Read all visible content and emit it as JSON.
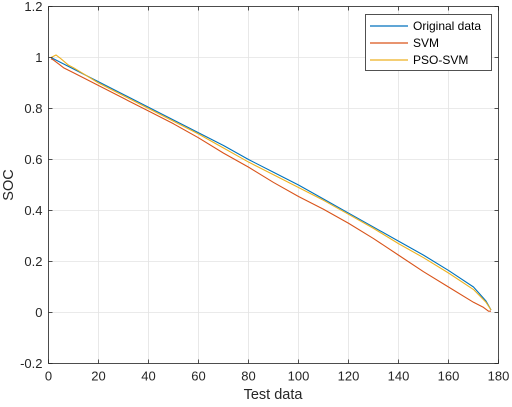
{
  "chart_data": {
    "type": "line",
    "xlabel": "Test data",
    "ylabel": "SOC",
    "xlim": [
      0,
      180
    ],
    "ylim": [
      -0.2,
      1.2
    ],
    "xticks": [
      0,
      20,
      40,
      60,
      80,
      100,
      120,
      140,
      160,
      180
    ],
    "yticks": [
      -0.2,
      0,
      0.2,
      0.4,
      0.6,
      0.8,
      1,
      1.2
    ],
    "xtick_labels": [
      "0",
      "20",
      "40",
      "60",
      "80",
      "100",
      "120",
      "140",
      "160",
      "180"
    ],
    "ytick_labels": [
      "-0.2",
      "0",
      "0.2",
      "0.4",
      "0.6",
      "0.8",
      "1",
      "1.2"
    ],
    "grid": true,
    "legend_position": "top-right",
    "series": [
      {
        "name": "Original data",
        "color": "#0072BD",
        "x": [
          1,
          5,
          10,
          20,
          30,
          40,
          50,
          60,
          70,
          80,
          90,
          100,
          110,
          120,
          130,
          140,
          150,
          160,
          170,
          175,
          177
        ],
        "y": [
          1.0,
          0.98,
          0.955,
          0.905,
          0.855,
          0.805,
          0.755,
          0.705,
          0.655,
          0.6,
          0.55,
          0.5,
          0.445,
          0.39,
          0.335,
          0.28,
          0.225,
          0.165,
          0.1,
          0.045,
          0.01
        ]
      },
      {
        "name": "SVM",
        "color": "#D95319",
        "x": [
          1,
          2,
          4,
          6,
          10,
          20,
          30,
          40,
          50,
          60,
          70,
          80,
          90,
          100,
          110,
          120,
          130,
          140,
          150,
          160,
          170,
          174,
          176,
          177
        ],
        "y": [
          0.995,
          0.99,
          0.975,
          0.96,
          0.94,
          0.89,
          0.84,
          0.79,
          0.74,
          0.685,
          0.625,
          0.57,
          0.51,
          0.455,
          0.405,
          0.35,
          0.29,
          0.225,
          0.16,
          0.1,
          0.04,
          0.02,
          0.005,
          0.005
        ]
      },
      {
        "name": "PSO-SVM",
        "color": "#EDB120",
        "x": [
          1,
          3,
          5,
          8,
          10,
          20,
          30,
          40,
          50,
          60,
          70,
          80,
          90,
          100,
          110,
          120,
          130,
          140,
          150,
          160,
          170,
          175,
          177
        ],
        "y": [
          1.0,
          1.01,
          0.995,
          0.97,
          0.96,
          0.9,
          0.85,
          0.8,
          0.75,
          0.7,
          0.645,
          0.59,
          0.54,
          0.49,
          0.44,
          0.385,
          0.33,
          0.27,
          0.215,
          0.155,
          0.09,
          0.04,
          0.01
        ]
      }
    ]
  }
}
